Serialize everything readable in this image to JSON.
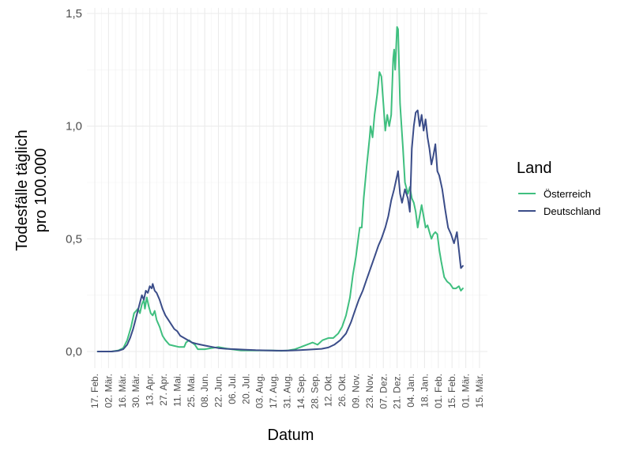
{
  "chart_data": {
    "type": "line",
    "title": "",
    "xlabel": "Datum",
    "ylabel_lines": [
      "Todesfälle täglich",
      "pro 100.000"
    ],
    "ylim": [
      0,
      1.5
    ],
    "y_ticks": [
      0,
      0.5,
      1.0,
      1.5
    ],
    "y_tick_labels": [
      "0,0",
      "0,5",
      "1,0",
      "1,5"
    ],
    "x_range": [
      "2020-02-17",
      "2021-03-15"
    ],
    "x_ticks": [
      "2020-02-17",
      "2020-03-02",
      "2020-03-16",
      "2020-03-30",
      "2020-04-13",
      "2020-04-27",
      "2020-05-11",
      "2020-05-25",
      "2020-06-08",
      "2020-06-22",
      "2020-07-06",
      "2020-07-20",
      "2020-08-03",
      "2020-08-17",
      "2020-08-31",
      "2020-09-14",
      "2020-09-28",
      "2020-10-12",
      "2020-10-26",
      "2020-11-09",
      "2020-11-23",
      "2020-12-07",
      "2020-12-21",
      "2021-01-04",
      "2021-01-18",
      "2021-02-01",
      "2021-02-15",
      "2021-03-01",
      "2021-03-15"
    ],
    "x_tick_labels": [
      "17. Feb.",
      "02. Mär.",
      "16. Mär.",
      "30. Mär.",
      "13. Apr.",
      "27. Apr.",
      "11. Mai.",
      "25. Mai.",
      "08. Jun.",
      "22. Jun.",
      "06. Jul.",
      "20. Jul.",
      "03. Aug.",
      "17. Aug.",
      "31. Aug.",
      "14. Sep.",
      "28. Sep.",
      "12. Okt.",
      "26. Okt.",
      "09. Nov.",
      "23. Nov.",
      "07. Dez.",
      "21. Dez.",
      "04. Jan.",
      "18. Jan.",
      "01. Feb.",
      "15. Feb.",
      "01. Mär.",
      "15. Mär."
    ],
    "grid": true,
    "legend": {
      "title": "Land",
      "position": "right"
    },
    "series": [
      {
        "name": "Österreich",
        "color": "#3fbf7f",
        "points": [
          [
            "2020-02-20",
            0.0
          ],
          [
            "2020-03-05",
            0.0
          ],
          [
            "2020-03-12",
            0.005
          ],
          [
            "2020-03-17",
            0.015
          ],
          [
            "2020-03-21",
            0.05
          ],
          [
            "2020-03-25",
            0.11
          ],
          [
            "2020-03-28",
            0.17
          ],
          [
            "2020-03-30",
            0.18
          ],
          [
            "2020-04-01",
            0.19
          ],
          [
            "2020-04-03",
            0.17
          ],
          [
            "2020-04-05",
            0.21
          ],
          [
            "2020-04-07",
            0.23
          ],
          [
            "2020-04-08",
            0.19
          ],
          [
            "2020-04-10",
            0.24
          ],
          [
            "2020-04-12",
            0.2
          ],
          [
            "2020-04-14",
            0.17
          ],
          [
            "2020-04-16",
            0.16
          ],
          [
            "2020-04-18",
            0.18
          ],
          [
            "2020-04-20",
            0.14
          ],
          [
            "2020-04-23",
            0.11
          ],
          [
            "2020-04-26",
            0.07
          ],
          [
            "2020-04-29",
            0.05
          ],
          [
            "2020-05-03",
            0.03
          ],
          [
            "2020-05-08",
            0.025
          ],
          [
            "2020-05-13",
            0.02
          ],
          [
            "2020-05-18",
            0.02
          ],
          [
            "2020-05-20",
            0.04
          ],
          [
            "2020-05-23",
            0.05
          ],
          [
            "2020-05-26",
            0.04
          ],
          [
            "2020-05-29",
            0.03
          ],
          [
            "2020-06-01",
            0.01
          ],
          [
            "2020-06-08",
            0.01
          ],
          [
            "2020-06-15",
            0.015
          ],
          [
            "2020-06-22",
            0.02
          ],
          [
            "2020-06-28",
            0.015
          ],
          [
            "2020-07-05",
            0.01
          ],
          [
            "2020-07-15",
            0.005
          ],
          [
            "2020-07-25",
            0.005
          ],
          [
            "2020-08-05",
            0.005
          ],
          [
            "2020-08-15",
            0.005
          ],
          [
            "2020-08-25",
            0.003
          ],
          [
            "2020-09-01",
            0.005
          ],
          [
            "2020-09-08",
            0.01
          ],
          [
            "2020-09-14",
            0.02
          ],
          [
            "2020-09-20",
            0.03
          ],
          [
            "2020-09-26",
            0.04
          ],
          [
            "2020-10-01",
            0.03
          ],
          [
            "2020-10-06",
            0.05
          ],
          [
            "2020-10-12",
            0.06
          ],
          [
            "2020-10-17",
            0.06
          ],
          [
            "2020-10-22",
            0.08
          ],
          [
            "2020-10-26",
            0.11
          ],
          [
            "2020-10-30",
            0.16
          ],
          [
            "2020-11-03",
            0.24
          ],
          [
            "2020-11-06",
            0.34
          ],
          [
            "2020-11-09",
            0.42
          ],
          [
            "2020-11-12",
            0.52
          ],
          [
            "2020-11-13",
            0.55
          ],
          [
            "2020-11-15",
            0.55
          ],
          [
            "2020-11-17",
            0.68
          ],
          [
            "2020-11-20",
            0.82
          ],
          [
            "2020-11-23",
            0.95
          ],
          [
            "2020-11-24",
            1.0
          ],
          [
            "2020-11-26",
            0.95
          ],
          [
            "2020-11-28",
            1.05
          ],
          [
            "2020-12-01",
            1.15
          ],
          [
            "2020-12-03",
            1.24
          ],
          [
            "2020-12-05",
            1.22
          ],
          [
            "2020-12-07",
            1.1
          ],
          [
            "2020-12-09",
            0.98
          ],
          [
            "2020-12-11",
            1.05
          ],
          [
            "2020-12-13",
            1.0
          ],
          [
            "2020-12-15",
            1.05
          ],
          [
            "2020-12-17",
            1.3
          ],
          [
            "2020-12-18",
            1.34
          ],
          [
            "2020-12-19",
            1.25
          ],
          [
            "2020-12-21",
            1.44
          ],
          [
            "2020-12-22",
            1.43
          ],
          [
            "2020-12-24",
            1.1
          ],
          [
            "2020-12-27",
            0.9
          ],
          [
            "2020-12-29",
            0.75
          ],
          [
            "2021-01-01",
            0.7
          ],
          [
            "2021-01-03",
            0.73
          ],
          [
            "2021-01-05",
            0.68
          ],
          [
            "2021-01-07",
            0.66
          ],
          [
            "2021-01-09",
            0.62
          ],
          [
            "2021-01-11",
            0.55
          ],
          [
            "2021-01-13",
            0.6
          ],
          [
            "2021-01-15",
            0.65
          ],
          [
            "2021-01-17",
            0.6
          ],
          [
            "2021-01-19",
            0.55
          ],
          [
            "2021-01-21",
            0.56
          ],
          [
            "2021-01-23",
            0.53
          ],
          [
            "2021-01-25",
            0.5
          ],
          [
            "2021-01-27",
            0.52
          ],
          [
            "2021-01-29",
            0.53
          ],
          [
            "2021-01-31",
            0.52
          ],
          [
            "2021-02-02",
            0.45
          ],
          [
            "2021-02-04",
            0.4
          ],
          [
            "2021-02-07",
            0.33
          ],
          [
            "2021-02-10",
            0.31
          ],
          [
            "2021-02-13",
            0.3
          ],
          [
            "2021-02-16",
            0.28
          ],
          [
            "2021-02-19",
            0.28
          ],
          [
            "2021-02-22",
            0.29
          ],
          [
            "2021-02-24",
            0.27
          ],
          [
            "2021-02-26",
            0.28
          ]
        ]
      },
      {
        "name": "Deutschland",
        "color": "#3b4d89",
        "points": [
          [
            "2020-02-20",
            0.0
          ],
          [
            "2020-03-05",
            0.0
          ],
          [
            "2020-03-12",
            0.003
          ],
          [
            "2020-03-17",
            0.01
          ],
          [
            "2020-03-21",
            0.03
          ],
          [
            "2020-03-24",
            0.06
          ],
          [
            "2020-03-27",
            0.1
          ],
          [
            "2020-03-30",
            0.15
          ],
          [
            "2020-04-02",
            0.2
          ],
          [
            "2020-04-05",
            0.25
          ],
          [
            "2020-04-07",
            0.23
          ],
          [
            "2020-04-09",
            0.27
          ],
          [
            "2020-04-11",
            0.26
          ],
          [
            "2020-04-13",
            0.29
          ],
          [
            "2020-04-15",
            0.28
          ],
          [
            "2020-04-16",
            0.3
          ],
          [
            "2020-04-18",
            0.27
          ],
          [
            "2020-04-20",
            0.26
          ],
          [
            "2020-04-23",
            0.23
          ],
          [
            "2020-04-26",
            0.19
          ],
          [
            "2020-04-29",
            0.16
          ],
          [
            "2020-05-02",
            0.14
          ],
          [
            "2020-05-05",
            0.12
          ],
          [
            "2020-05-08",
            0.1
          ],
          [
            "2020-05-11",
            0.09
          ],
          [
            "2020-05-14",
            0.07
          ],
          [
            "2020-05-18",
            0.06
          ],
          [
            "2020-05-22",
            0.05
          ],
          [
            "2020-05-26",
            0.04
          ],
          [
            "2020-05-30",
            0.035
          ],
          [
            "2020-06-04",
            0.03
          ],
          [
            "2020-06-10",
            0.025
          ],
          [
            "2020-06-16",
            0.02
          ],
          [
            "2020-06-22",
            0.015
          ],
          [
            "2020-06-30",
            0.012
          ],
          [
            "2020-07-10",
            0.01
          ],
          [
            "2020-07-20",
            0.008
          ],
          [
            "2020-07-30",
            0.006
          ],
          [
            "2020-08-10",
            0.005
          ],
          [
            "2020-08-20",
            0.004
          ],
          [
            "2020-08-30",
            0.004
          ],
          [
            "2020-09-05",
            0.005
          ],
          [
            "2020-09-12",
            0.006
          ],
          [
            "2020-09-20",
            0.008
          ],
          [
            "2020-09-28",
            0.01
          ],
          [
            "2020-10-05",
            0.012
          ],
          [
            "2020-10-12",
            0.018
          ],
          [
            "2020-10-18",
            0.03
          ],
          [
            "2020-10-24",
            0.05
          ],
          [
            "2020-10-30",
            0.08
          ],
          [
            "2020-11-04",
            0.13
          ],
          [
            "2020-11-08",
            0.18
          ],
          [
            "2020-11-12",
            0.23
          ],
          [
            "2020-11-16",
            0.27
          ],
          [
            "2020-11-20",
            0.32
          ],
          [
            "2020-11-24",
            0.37
          ],
          [
            "2020-11-28",
            0.42
          ],
          [
            "2020-12-02",
            0.47
          ],
          [
            "2020-12-05",
            0.5
          ],
          [
            "2020-12-09",
            0.55
          ],
          [
            "2020-12-12",
            0.6
          ],
          [
            "2020-12-15",
            0.67
          ],
          [
            "2020-12-18",
            0.72
          ],
          [
            "2020-12-21",
            0.78
          ],
          [
            "2020-12-22",
            0.8
          ],
          [
            "2020-12-24",
            0.7
          ],
          [
            "2020-12-26",
            0.66
          ],
          [
            "2020-12-29",
            0.72
          ],
          [
            "2021-01-01",
            0.68
          ],
          [
            "2021-01-03",
            0.62
          ],
          [
            "2021-01-05",
            0.9
          ],
          [
            "2021-01-07",
            1.0
          ],
          [
            "2021-01-09",
            1.06
          ],
          [
            "2021-01-11",
            1.07
          ],
          [
            "2021-01-13",
            1.0
          ],
          [
            "2021-01-15",
            1.05
          ],
          [
            "2021-01-17",
            0.98
          ],
          [
            "2021-01-19",
            1.03
          ],
          [
            "2021-01-21",
            0.95
          ],
          [
            "2021-01-23",
            0.9
          ],
          [
            "2021-01-25",
            0.83
          ],
          [
            "2021-01-27",
            0.87
          ],
          [
            "2021-01-29",
            0.92
          ],
          [
            "2021-01-31",
            0.8
          ],
          [
            "2021-02-02",
            0.78
          ],
          [
            "2021-02-05",
            0.72
          ],
          [
            "2021-02-08",
            0.63
          ],
          [
            "2021-02-11",
            0.55
          ],
          [
            "2021-02-14",
            0.52
          ],
          [
            "2021-02-17",
            0.48
          ],
          [
            "2021-02-20",
            0.53
          ],
          [
            "2021-02-22",
            0.45
          ],
          [
            "2021-02-24",
            0.37
          ],
          [
            "2021-02-26",
            0.38
          ]
        ]
      }
    ]
  }
}
